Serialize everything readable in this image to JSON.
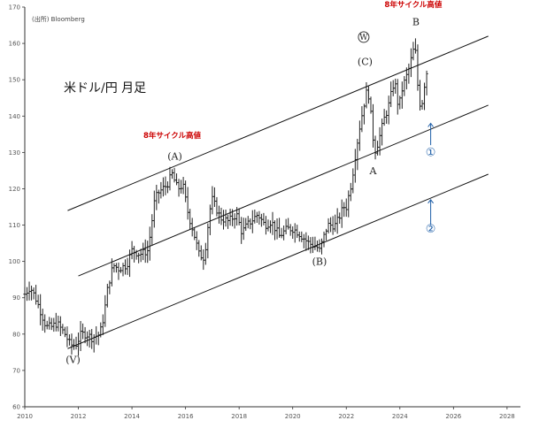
{
  "source": "(出所) Bloomberg",
  "title": "米ドル/円 月足",
  "chart_data": {
    "type": "ohlc",
    "title": "米ドル/円 月足",
    "xlim": [
      2010,
      2028.5
    ],
    "ylim": [
      60,
      170
    ],
    "xticks": [
      2010,
      2012,
      2014,
      2016,
      2018,
      2020,
      2022,
      2024,
      2026,
      2028
    ],
    "yticks": [
      60,
      70,
      80,
      90,
      100,
      110,
      120,
      130,
      140,
      150,
      160,
      170
    ],
    "grid": false,
    "anchors": [
      [
        2010.0,
        91
      ],
      [
        2010.2,
        93
      ],
      [
        2010.4,
        90
      ],
      [
        2010.6,
        86
      ],
      [
        2010.8,
        82
      ],
      [
        2011.0,
        82
      ],
      [
        2011.2,
        83
      ],
      [
        2011.5,
        80
      ],
      [
        2011.7,
        77
      ],
      [
        2011.9,
        77
      ],
      [
        2012.1,
        80
      ],
      [
        2012.3,
        80
      ],
      [
        2012.5,
        79
      ],
      [
        2012.8,
        80
      ],
      [
        2012.95,
        85
      ],
      [
        2013.1,
        93
      ],
      [
        2013.3,
        99
      ],
      [
        2013.5,
        98
      ],
      [
        2013.8,
        99
      ],
      [
        2014.0,
        103
      ],
      [
        2014.3,
        102
      ],
      [
        2014.6,
        103
      ],
      [
        2014.85,
        117
      ],
      [
        2015.0,
        119
      ],
      [
        2015.3,
        121
      ],
      [
        2015.5,
        124
      ],
      [
        2015.7,
        120
      ],
      [
        2015.9,
        121
      ],
      [
        2016.1,
        113
      ],
      [
        2016.3,
        108
      ],
      [
        2016.5,
        102
      ],
      [
        2016.7,
        101
      ],
      [
        2016.9,
        114
      ],
      [
        2017.0,
        117
      ],
      [
        2017.3,
        112
      ],
      [
        2017.6,
        111
      ],
      [
        2017.9,
        113
      ],
      [
        2018.1,
        108
      ],
      [
        2018.3,
        110
      ],
      [
        2018.7,
        113
      ],
      [
        2018.95,
        110
      ],
      [
        2019.2,
        111
      ],
      [
        2019.5,
        107
      ],
      [
        2019.8,
        109
      ],
      [
        2020.0,
        109
      ],
      [
        2020.2,
        108
      ],
      [
        2020.6,
        105
      ],
      [
        2020.9,
        104
      ],
      [
        2021.0,
        103
      ],
      [
        2021.3,
        110
      ],
      [
        2021.6,
        110
      ],
      [
        2021.9,
        115
      ],
      [
        2022.0,
        115
      ],
      [
        2022.2,
        122
      ],
      [
        2022.35,
        130
      ],
      [
        2022.5,
        137
      ],
      [
        2022.65,
        143
      ],
      [
        2022.8,
        148
      ],
      [
        2022.95,
        138
      ],
      [
        2023.05,
        130
      ],
      [
        2023.2,
        133
      ],
      [
        2023.4,
        139
      ],
      [
        2023.55,
        142
      ],
      [
        2023.8,
        150
      ],
      [
        2023.95,
        142
      ],
      [
        2024.1,
        148
      ],
      [
        2024.3,
        152
      ],
      [
        2024.5,
        158
      ],
      [
        2024.55,
        161
      ],
      [
        2024.7,
        145
      ],
      [
        2024.8,
        142
      ],
      [
        2024.9,
        148
      ],
      [
        2025.0,
        152
      ]
    ],
    "channel": [
      {
        "name": "upper",
        "x1": 2011.6,
        "y1": 114,
        "x2": 2027.3,
        "y2": 162
      },
      {
        "name": "middle",
        "x1": 2012.0,
        "y1": 96,
        "x2": 2027.3,
        "y2": 143
      },
      {
        "name": "lower",
        "x1": 2011.6,
        "y1": 76,
        "x2": 2027.3,
        "y2": 124
      }
    ],
    "annotations": [
      {
        "text": "(V)",
        "x": 2011.8,
        "y": 72,
        "kind": "wave"
      },
      {
        "text": "(A)",
        "x": 2015.6,
        "y": 128,
        "kind": "wave"
      },
      {
        "text": "(B)",
        "x": 2021.0,
        "y": 99,
        "kind": "wave"
      },
      {
        "text": "(C)",
        "x": 2022.7,
        "y": 154,
        "kind": "wave"
      },
      {
        "text": "W",
        "x": 2022.65,
        "y": 161,
        "kind": "circled"
      },
      {
        "text": "A",
        "x": 2023.0,
        "y": 124,
        "kind": "wave"
      },
      {
        "text": "B",
        "x": 2024.6,
        "y": 165,
        "kind": "wave"
      },
      {
        "text": "8年サイクル高値",
        "x": 2015.5,
        "y": 134,
        "kind": "red"
      },
      {
        "text": "8年サイクル高値",
        "x": 2024.5,
        "y": 170,
        "kind": "red"
      },
      {
        "text": "①",
        "x": 2025.15,
        "y": 129,
        "kind": "blue"
      },
      {
        "text": "②",
        "x": 2025.15,
        "y": 108,
        "kind": "blue"
      }
    ],
    "arrows": [
      {
        "x": 2025.15,
        "y_from": 132,
        "y_to": 138
      },
      {
        "x": 2025.15,
        "y_from": 110,
        "y_to": 117
      }
    ]
  }
}
